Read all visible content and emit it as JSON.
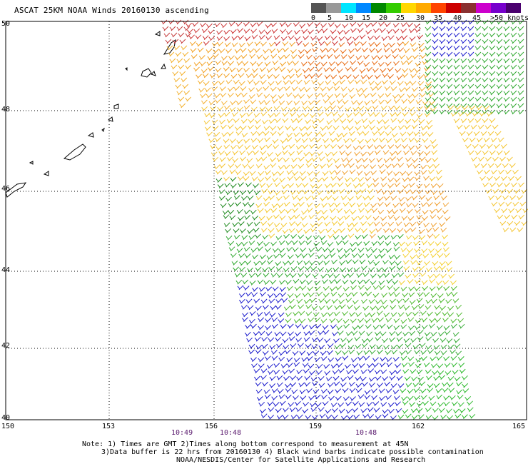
{
  "title": "ASCAT 25KM NOAA Winds 20160130 ascending",
  "latitudes": [
    "50",
    "48",
    "46",
    "44",
    "42",
    "40"
  ],
  "longitudes": [
    "150",
    "153",
    "156",
    "159",
    "162",
    "165"
  ],
  "pass_times": [
    "10:49",
    "10:48",
    "10:48"
  ],
  "legend": {
    "labels": [
      "0",
      "5",
      "10",
      "15",
      "20",
      "25",
      "30",
      "35",
      "40",
      "45",
      ">50 knots"
    ],
    "colors": [
      "#555555",
      "#999999",
      "#00e5ff",
      "#0088ff",
      "#008800",
      "#33cc00",
      "#ffd700",
      "#ffaa00",
      "#ff4400",
      "#cc0000",
      "#8a3030",
      "#cc00cc",
      "#7700cc",
      "#4a006e"
    ]
  },
  "notes": {
    "line1": "Note: 1) Times are GMT 2)Times along bottom correspond to measurement at 45N",
    "line2": "3)Data buffer is 22 hrs from 20160130 4) Black wind barbs indicate possible contamination",
    "line3": "NOAA/NESDIS/Center for Satellite Applications and Research"
  }
}
